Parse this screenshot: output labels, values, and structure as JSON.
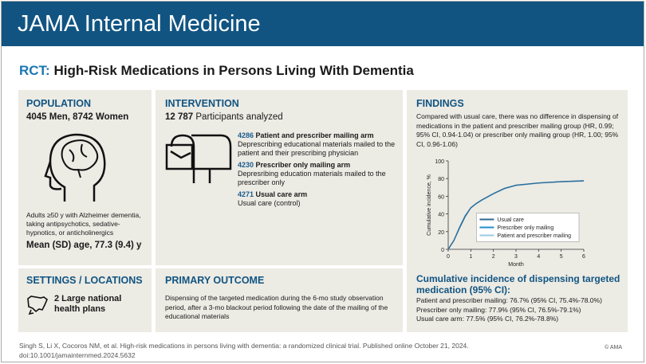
{
  "header": {
    "title": "JAMA Internal Medicine"
  },
  "page_title": {
    "prefix": "RCT:",
    "text": "High-Risk Medications in Persons Living With Dementia"
  },
  "population": {
    "heading": "POPULATION",
    "headline": "4045 Men, 8742 Women",
    "description": "Adults ≥50 y with Alzheimer dementia, taking antipsychotics, sedative-hypnotics, or anticholinergics",
    "age": "Mean (SD) age, 77.3 (9.4) y",
    "icon": "head-brain-icon"
  },
  "intervention": {
    "heading": "INTERVENTION",
    "total_num": "12 787",
    "total_label": "Participants analyzed",
    "icon": "mailbox-icon",
    "arms": [
      {
        "n": "4286",
        "name": "Patient and prescriber mailing arm",
        "desc": "Deprescribing educational materials mailed to the patient and their prescribing physician"
      },
      {
        "n": "4230",
        "name": "Prescriber only mailing arm",
        "desc": "Depresribing education materials mailed to the prescriber only"
      },
      {
        "n": "4271",
        "name": "Usual care arm",
        "desc": "Usual care (control)"
      }
    ]
  },
  "settings": {
    "heading": "SETTINGS / LOCATIONS",
    "text": "2 Large national health plans",
    "icon": "us-map-icon"
  },
  "primary_outcome": {
    "heading": "PRIMARY OUTCOME",
    "text": "Dispensing of the targeted medication during the 6-mo study observation period, after a 3-mo blackout period following the date of the mailing of the educational materials"
  },
  "findings": {
    "heading": "FINDINGS",
    "text": "Compared with usual care, there was no difference in dispensing of medications in the patient and prescriber mailing group (HR, 0.99; 95% CI, 0.94-1.04) or prescriber only mailing group (HR, 1.00; 95% CI, 0.96-1.06)",
    "ci_heading": "Cumulative incidence of dispensing targeted medication (95% CI):",
    "ci_lines": [
      "Patient and prescriber mailing: 76.7% (95% CI, 75.4%-78.0%)",
      "Prescriber only mailing: 77.9% (95% CI, 76.5%-79.1%)",
      "Usual care arm: 77.5% (95% CI, 76.2%-78.8%)"
    ]
  },
  "chart_data": {
    "type": "line",
    "xlabel": "Month",
    "ylabel": "Cumulative incidence, %",
    "xlim": [
      0,
      6
    ],
    "ylim": [
      0,
      100
    ],
    "xticks": [
      "0",
      "1",
      "2",
      "3",
      "4",
      "5",
      "6"
    ],
    "yticks": [
      "0",
      "20",
      "40",
      "60",
      "80",
      "100"
    ],
    "grid": false,
    "legend": "bottom-right",
    "x": [
      0,
      0.25,
      0.5,
      0.75,
      1,
      1.25,
      1.5,
      2,
      2.5,
      3,
      4,
      5,
      6
    ],
    "series": [
      {
        "name": "Usual care",
        "color": "#2f6a94",
        "values": [
          0,
          10,
          24,
          37,
          47,
          52,
          56,
          63,
          69,
          72.5,
          75,
          76.5,
          77.4
        ]
      },
      {
        "name": "Prescriber only mailing",
        "color": "#1e90c8",
        "values": [
          0,
          10,
          25,
          38,
          47,
          52,
          56,
          63,
          69,
          72.5,
          75.1,
          76.6,
          77.6
        ]
      },
      {
        "name": "Patient and prescriber mailing",
        "color": "#9cc9e6",
        "values": [
          0,
          9.5,
          24,
          37,
          46.5,
          51.5,
          55.5,
          62.5,
          68.5,
          72,
          74.8,
          76.3,
          77
        ]
      }
    ]
  },
  "footer": {
    "citation": "Singh S, Li X, Cocoros NM, et al. High-risk medications in persons living with dementia: a randomized clinical trial. Published online October 21, 2024.",
    "doi": "doi:10.1001/jamainternmed.2024.5632",
    "copyright": "© AMA"
  }
}
